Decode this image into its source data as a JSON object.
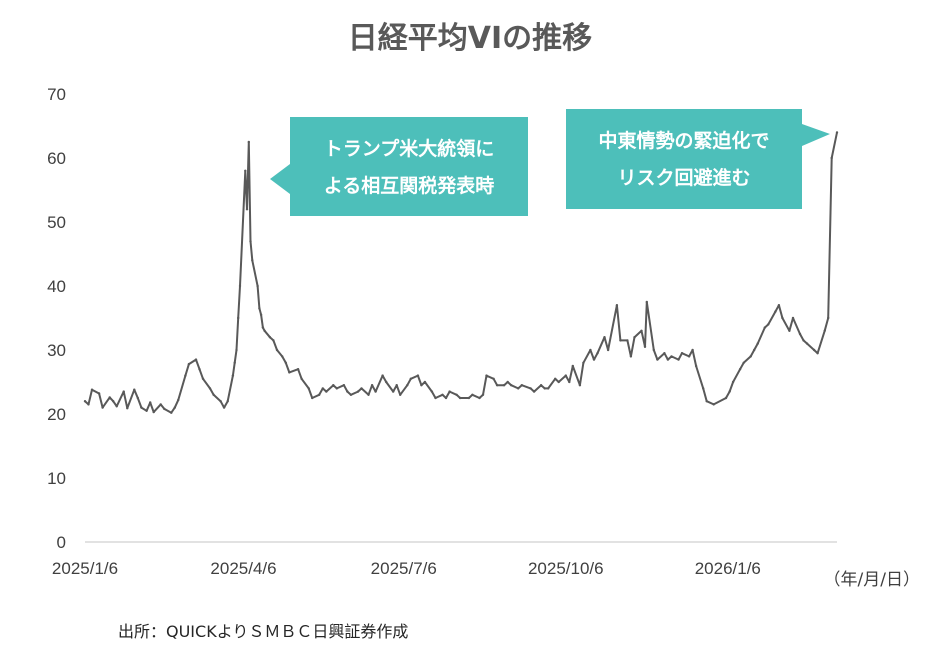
{
  "chart_data": {
    "type": "line",
    "title": "日経平均VIの推移",
    "xlabel": "",
    "ylabel": "",
    "x_unit_label": "（年/月/日）",
    "ylim": [
      0,
      70
    ],
    "y_ticks": [
      "0",
      "10",
      "20",
      "30",
      "40",
      "50",
      "60",
      "70"
    ],
    "x_ticks": [
      {
        "date": "2025-01-06",
        "label": "2025/1/6"
      },
      {
        "date": "2025-04-06",
        "label": "2025/4/6"
      },
      {
        "date": "2025-07-06",
        "label": "2025/7/6"
      },
      {
        "date": "2025-10-06",
        "label": "2025/10/6"
      },
      {
        "date": "2026-01-06",
        "label": "2026/1/6"
      }
    ],
    "xlim": [
      "2025-01-06",
      "2026-03-09"
    ],
    "grid": false,
    "series_color": "#595959",
    "series": [
      {
        "name": "",
        "points": [
          [
            "2025-01-06",
            22.0
          ],
          [
            "2025-01-08",
            21.5
          ],
          [
            "2025-01-10",
            23.8
          ],
          [
            "2025-01-14",
            23.2
          ],
          [
            "2025-01-16",
            21.0
          ],
          [
            "2025-01-20",
            22.6
          ],
          [
            "2025-01-22",
            22.0
          ],
          [
            "2025-01-24",
            21.2
          ],
          [
            "2025-01-28",
            23.5
          ],
          [
            "2025-01-30",
            20.9
          ],
          [
            "2025-02-03",
            23.8
          ],
          [
            "2025-02-05",
            22.5
          ],
          [
            "2025-02-07",
            21.0
          ],
          [
            "2025-02-10",
            20.5
          ],
          [
            "2025-02-12",
            21.8
          ],
          [
            "2025-02-14",
            20.3
          ],
          [
            "2025-02-18",
            21.5
          ],
          [
            "2025-02-20",
            20.8
          ],
          [
            "2025-02-24",
            20.2
          ],
          [
            "2025-02-26",
            21.0
          ],
          [
            "2025-02-28",
            22.2
          ],
          [
            "2025-03-04",
            26.0
          ],
          [
            "2025-03-06",
            27.8
          ],
          [
            "2025-03-10",
            28.5
          ],
          [
            "2025-03-12",
            27.0
          ],
          [
            "2025-03-14",
            25.5
          ],
          [
            "2025-03-18",
            24.0
          ],
          [
            "2025-03-20",
            23.0
          ],
          [
            "2025-03-24",
            22.0
          ],
          [
            "2025-03-26",
            21.0
          ],
          [
            "2025-03-28",
            22.0
          ],
          [
            "2025-03-31",
            26.0
          ],
          [
            "2025-04-01",
            28.0
          ],
          [
            "2025-04-02",
            30.0
          ],
          [
            "2025-04-03",
            35.0
          ],
          [
            "2025-04-04",
            40.0
          ],
          [
            "2025-04-07",
            58.0
          ],
          [
            "2025-04-08",
            52.0
          ],
          [
            "2025-04-09",
            62.5
          ],
          [
            "2025-04-10",
            47.0
          ],
          [
            "2025-04-11",
            44.0
          ],
          [
            "2025-04-14",
            40.0
          ],
          [
            "2025-04-15",
            36.5
          ],
          [
            "2025-04-16",
            35.5
          ],
          [
            "2025-04-17",
            33.5
          ],
          [
            "2025-04-18",
            33.0
          ],
          [
            "2025-04-21",
            32.0
          ],
          [
            "2025-04-23",
            31.5
          ],
          [
            "2025-04-25",
            30.0
          ],
          [
            "2025-04-28",
            29.0
          ],
          [
            "2025-04-30",
            28.0
          ],
          [
            "2025-05-02",
            26.5
          ],
          [
            "2025-05-07",
            27.0
          ],
          [
            "2025-05-09",
            25.5
          ],
          [
            "2025-05-13",
            24.0
          ],
          [
            "2025-05-15",
            22.5
          ],
          [
            "2025-05-19",
            23.0
          ],
          [
            "2025-05-21",
            24.0
          ],
          [
            "2025-05-23",
            23.5
          ],
          [
            "2025-05-27",
            24.5
          ],
          [
            "2025-05-29",
            24.0
          ],
          [
            "2025-06-02",
            24.5
          ],
          [
            "2025-06-04",
            23.5
          ],
          [
            "2025-06-06",
            23.0
          ],
          [
            "2025-06-10",
            23.5
          ],
          [
            "2025-06-12",
            24.0
          ],
          [
            "2025-06-16",
            23.0
          ],
          [
            "2025-06-18",
            24.5
          ],
          [
            "2025-06-20",
            23.5
          ],
          [
            "2025-06-24",
            26.0
          ],
          [
            "2025-06-26",
            25.0
          ],
          [
            "2025-06-30",
            23.5
          ],
          [
            "2025-07-02",
            24.5
          ],
          [
            "2025-07-04",
            23.0
          ],
          [
            "2025-07-08",
            24.5
          ],
          [
            "2025-07-10",
            25.5
          ],
          [
            "2025-07-14",
            26.0
          ],
          [
            "2025-07-16",
            24.5
          ],
          [
            "2025-07-18",
            25.0
          ],
          [
            "2025-07-22",
            23.5
          ],
          [
            "2025-07-24",
            22.5
          ],
          [
            "2025-07-28",
            23.0
          ],
          [
            "2025-07-30",
            22.5
          ],
          [
            "2025-08-01",
            23.5
          ],
          [
            "2025-08-05",
            23.0
          ],
          [
            "2025-08-07",
            22.5
          ],
          [
            "2025-08-12",
            22.5
          ],
          [
            "2025-08-14",
            23.0
          ],
          [
            "2025-08-18",
            22.5
          ],
          [
            "2025-08-20",
            23.0
          ],
          [
            "2025-08-22",
            26.0
          ],
          [
            "2025-08-26",
            25.5
          ],
          [
            "2025-08-28",
            24.5
          ],
          [
            "2025-09-01",
            24.5
          ],
          [
            "2025-09-03",
            25.0
          ],
          [
            "2025-09-05",
            24.5
          ],
          [
            "2025-09-09",
            24.0
          ],
          [
            "2025-09-11",
            24.5
          ],
          [
            "2025-09-16",
            24.0
          ],
          [
            "2025-09-18",
            23.5
          ],
          [
            "2025-09-22",
            24.5
          ],
          [
            "2025-09-24",
            24.0
          ],
          [
            "2025-09-26",
            24.0
          ],
          [
            "2025-09-30",
            25.5
          ],
          [
            "2025-10-02",
            25.0
          ],
          [
            "2025-10-06",
            26.0
          ],
          [
            "2025-10-08",
            25.0
          ],
          [
            "2025-10-10",
            27.5
          ],
          [
            "2025-10-14",
            24.5
          ],
          [
            "2025-10-16",
            28.0
          ],
          [
            "2025-10-20",
            30.0
          ],
          [
            "2025-10-22",
            28.5
          ],
          [
            "2025-10-24",
            29.5
          ],
          [
            "2025-10-28",
            32.0
          ],
          [
            "2025-10-30",
            30.0
          ],
          [
            "2025-11-04",
            37.0
          ],
          [
            "2025-11-06",
            31.5
          ],
          [
            "2025-11-10",
            31.5
          ],
          [
            "2025-11-12",
            29.0
          ],
          [
            "2025-11-14",
            32.0
          ],
          [
            "2025-11-18",
            33.0
          ],
          [
            "2025-11-20",
            30.5
          ],
          [
            "2025-11-21",
            37.5
          ],
          [
            "2025-11-25",
            30.0
          ],
          [
            "2025-11-27",
            28.5
          ],
          [
            "2025-12-01",
            29.5
          ],
          [
            "2025-12-03",
            28.5
          ],
          [
            "2025-12-05",
            29.0
          ],
          [
            "2025-12-09",
            28.5
          ],
          [
            "2025-12-11",
            29.5
          ],
          [
            "2025-12-15",
            29.0
          ],
          [
            "2025-12-17",
            30.0
          ],
          [
            "2025-12-19",
            27.5
          ],
          [
            "2025-12-23",
            24.0
          ],
          [
            "2025-12-25",
            22.0
          ],
          [
            "2025-12-29",
            21.5
          ],
          [
            "2026-01-05",
            22.5
          ],
          [
            "2026-01-07",
            23.5
          ],
          [
            "2026-01-09",
            25.0
          ],
          [
            "2026-01-13",
            27.0
          ],
          [
            "2026-01-15",
            28.0
          ],
          [
            "2026-01-19",
            29.0
          ],
          [
            "2026-01-21",
            30.0
          ],
          [
            "2026-01-23",
            31.0
          ],
          [
            "2026-01-27",
            33.5
          ],
          [
            "2026-01-29",
            34.0
          ],
          [
            "2026-02-02",
            36.0
          ],
          [
            "2026-02-04",
            37.0
          ],
          [
            "2026-02-06",
            35.0
          ],
          [
            "2026-02-10",
            33.0
          ],
          [
            "2026-02-12",
            35.0
          ],
          [
            "2026-02-16",
            32.5
          ],
          [
            "2026-02-18",
            31.5
          ],
          [
            "2026-02-20",
            31.0
          ],
          [
            "2026-02-24",
            30.0
          ],
          [
            "2026-02-26",
            29.5
          ],
          [
            "2026-03-02",
            33.0
          ],
          [
            "2026-03-04",
            35.0
          ],
          [
            "2026-03-06",
            60.0
          ],
          [
            "2026-03-09",
            64.0
          ]
        ]
      }
    ],
    "annotations": [
      {
        "lines": [
          "トランプ米大統領に",
          "よる相互関税発表時"
        ],
        "color": "#4dbfba"
      },
      {
        "lines": [
          "中東情勢の緊迫化で",
          "リスク回避進む"
        ],
        "color": "#4dbfba"
      }
    ]
  },
  "footer": {
    "source": "出所：QUICKよりＳＭＢＣ日興証券作成"
  }
}
